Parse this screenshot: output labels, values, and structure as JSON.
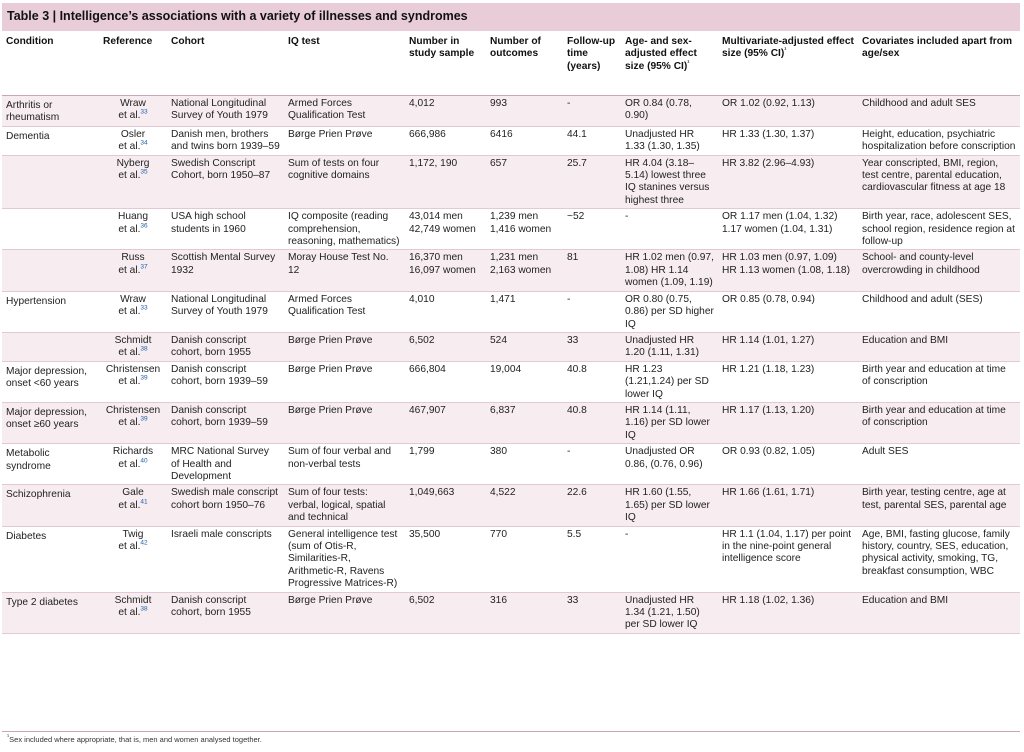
{
  "title": "Table 3 | Intelligence’s associations with a variety of illnesses and syndromes",
  "columns": [
    "Condition",
    "Reference",
    "Cohort",
    "IQ test",
    "Number in study sample",
    "Number of outcomes",
    "Follow-up time (years)",
    "Age- and sex-adjusted effect size (95% CI)",
    "Multivariate-adjusted effect size (95% CI)",
    "Covariates included apart from age/sex"
  ],
  "footnote_marks": {
    "age_sex": "¹",
    "multivariate": "¹",
    "footnote": "¹"
  },
  "rows": [
    {
      "condition": "Arthritis or rheumatism",
      "ref_name": "Wraw",
      "ref_etal": "et al.",
      "ref_num": "33",
      "cohort": "National Longitudinal Survey of Youth 1979",
      "iq_test": "Armed Forces Qualification Test",
      "sample": "4,012",
      "outcomes": "993",
      "followup": "-",
      "age_sex": "OR 0.84 (0.78, 0.90)",
      "multivariate": "OR 1.02 (0.92, 1.13)",
      "covariates": "Childhood and adult SES",
      "alt": true
    },
    {
      "condition": "Dementia",
      "ref_name": "Osler",
      "ref_etal": "et al.",
      "ref_num": "34",
      "cohort": "Danish men, brothers and twins born 1939–59",
      "iq_test": "Børge Prien Prøve",
      "sample": "666,986",
      "outcomes": "6416",
      "followup": "44.1",
      "age_sex": "Unadjusted HR 1.33 (1.30, 1.35)",
      "multivariate": "HR 1.33 (1.30, 1.37)",
      "covariates": "Height, education, psychiatric hospitalization before conscription",
      "alt": false
    },
    {
      "condition": "",
      "ref_name": "Nyberg",
      "ref_etal": "et al.",
      "ref_num": "35",
      "cohort": "Swedish Conscript Cohort, born 1950–87",
      "iq_test": "Sum of tests on four cognitive domains",
      "sample": "1,172, 190",
      "outcomes": "657",
      "followup": "25.7",
      "age_sex": "HR 4.04 (3.18–5.14) lowest three IQ stanines versus highest three",
      "multivariate": "HR 3.82 (2.96–4.93)",
      "covariates": "Year conscripted, BMI, region, test centre, parental education, cardiovascular fitness at age 18",
      "alt": true
    },
    {
      "condition": "",
      "ref_name": "Huang",
      "ref_etal": "et al.",
      "ref_num": "36",
      "cohort": "USA high school students in 1960",
      "iq_test": "IQ composite (reading comprehension, reasoning, mathematics)",
      "sample": "43,014 men 42,749 women",
      "outcomes": "1,239 men 1,416 women",
      "followup": "~52",
      "age_sex": "-",
      "multivariate": "OR 1.17 men (1.04, 1.32) 1.17 women (1.04, 1.31)",
      "covariates": "Birth year, race, adolescent SES, school region, residence region at follow-up",
      "alt": false
    },
    {
      "condition": "",
      "ref_name": "Russ",
      "ref_etal": "et al.",
      "ref_num": "37",
      "cohort": "Scottish Mental Survey 1932",
      "iq_test": "Moray House Test No. 12",
      "sample": "16,370 men 16,097 women",
      "outcomes": "1,231 men 2,163 women",
      "followup": "81",
      "age_sex": "HR 1.02 men (0.97, 1.08) HR 1.14 women (1.09, 1.19)",
      "multivariate": "HR 1.03 men (0.97, 1.09) HR 1.13 women (1.08, 1.18)",
      "covariates": "School- and county-level overcrowding in childhood",
      "alt": true
    },
    {
      "condition": "Hypertension",
      "ref_name": "Wraw",
      "ref_etal": "et al.",
      "ref_num": "33",
      "cohort": "National Longitudinal Survey of Youth 1979",
      "iq_test": "Armed Forces Qualification Test",
      "sample": "4,010",
      "outcomes": "1,471",
      "followup": "-",
      "age_sex": "OR 0.80 (0.75, 0.86) per SD higher IQ",
      "multivariate": "OR 0.85 (0.78, 0.94)",
      "covariates": "Childhood and adult (SES)",
      "alt": false
    },
    {
      "condition": "",
      "ref_name": "Schmidt",
      "ref_etal": "et al.",
      "ref_num": "38",
      "cohort": "Danish conscript cohort, born 1955",
      "iq_test": "Børge Prien Prøve",
      "sample": "6,502",
      "outcomes": "524",
      "followup": "33",
      "age_sex": "Unadjusted HR 1.20 (1.11, 1.31)",
      "multivariate": "HR 1.14 (1.01, 1.27)",
      "covariates": "Education and BMI",
      "alt": true
    },
    {
      "condition": "Major depression, onset <60 years",
      "ref_name": "Christensen",
      "ref_etal": "et al.",
      "ref_num": "39",
      "cohort": "Danish conscript cohort, born 1939–59",
      "iq_test": "Børge Prien Prøve",
      "sample": "666,804",
      "outcomes": "19,004",
      "followup": "40.8",
      "age_sex": "HR 1.23 (1.21,1.24) per SD lower IQ",
      "multivariate": "HR 1.21 (1.18, 1.23)",
      "covariates": "Birth year and education at time of conscription",
      "alt": false
    },
    {
      "condition": "Major depression, onset ≥60 years",
      "ref_name": "Christensen",
      "ref_etal": "et al.",
      "ref_num": "39",
      "cohort": "Danish conscript cohort, born 1939–59",
      "iq_test": "Børge Prien Prøve",
      "sample": "467,907",
      "outcomes": "6,837",
      "followup": "40.8",
      "age_sex": "HR 1.14 (1.11, 1.16) per SD lower IQ",
      "multivariate": "HR 1.17 (1.13, 1.20)",
      "covariates": "Birth year and education at time of conscription",
      "alt": true
    },
    {
      "condition": "Metabolic syndrome",
      "ref_name": "Richards",
      "ref_etal": "et al.",
      "ref_num": "40",
      "cohort": "MRC National Survey of Health and Development",
      "iq_test": "Sum of four verbal and non-verbal tests",
      "sample": "1,799",
      "outcomes": "380",
      "followup": "-",
      "age_sex": "Unadjusted OR 0.86, (0.76, 0.96)",
      "multivariate": "OR 0.93 (0.82, 1.05)",
      "covariates": "Adult SES",
      "alt": false
    },
    {
      "condition": "Schizophrenia",
      "ref_name": "Gale",
      "ref_etal": "et al.",
      "ref_num": "41",
      "cohort": "Swedish male conscript cohort born 1950–76",
      "iq_test": "Sum of four tests: verbal, logical, spatial and technical",
      "sample": "1,049,663",
      "outcomes": "4,522",
      "followup": "22.6",
      "age_sex": "HR 1.60 (1.55, 1.65) per SD lower IQ",
      "multivariate": "HR 1.66 (1.61, 1.71)",
      "covariates": "Birth year, testing centre, age at test, parental SES, parental age",
      "alt": true
    },
    {
      "condition": "Diabetes",
      "ref_name": "Twig",
      "ref_etal": "et al.",
      "ref_num": "42",
      "cohort": "Israeli male conscripts",
      "iq_test": "General intelligence test (sum of Otis-R, Similarities-R, Arithmetic-R, Ravens Progressive Matrices-R)",
      "sample": "35,500",
      "outcomes": "770",
      "followup": "5.5",
      "age_sex": "-",
      "multivariate": "HR 1.1 (1.04, 1.17) per point in the nine-point general intelligence score",
      "covariates": "Age, BMI, fasting glucose, family history, country, SES, education, physical activity, smoking, TG, breakfast consumption, WBC",
      "alt": false
    },
    {
      "condition": "Type 2 diabetes",
      "ref_name": "Schmidt",
      "ref_etal": "et al.",
      "ref_num": "38",
      "cohort": "Danish conscript cohort, born 1955",
      "iq_test": "Børge Prien Prøve",
      "sample": "6,502",
      "outcomes": "316",
      "followup": "33",
      "age_sex": "Unadjusted HR 1.34 (1.21, 1.50) per SD lower IQ",
      "multivariate": "HR 1.18 (1.02, 1.36)",
      "covariates": "Education and BMI",
      "alt": true
    }
  ],
  "footnote": "Sex included where appropriate, that is, men and women analysed together.",
  "colors": {
    "title_bg": "#e8cdd8",
    "alt_row_bg": "#f7edf1",
    "rule": "#c9a7b5"
  }
}
